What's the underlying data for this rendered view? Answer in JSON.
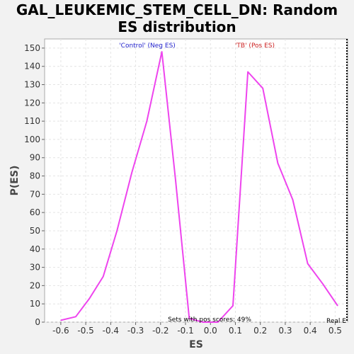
{
  "chart_data": {
    "type": "line",
    "title_line1": "GAL_LEUKEMIC_STEM_CELL_DN: Random",
    "title_line2": "ES distribution",
    "xlabel": "ES",
    "ylabel": "P(ES)",
    "xlim": [
      -0.665,
      0.55
    ],
    "ylim": [
      0,
      155
    ],
    "xticks": [
      -0.6,
      -0.5,
      -0.4,
      -0.3,
      -0.2,
      -0.1,
      0.0,
      0.1,
      0.2,
      0.3,
      0.4,
      0.5
    ],
    "xtick_labels": [
      "-0.6",
      "-0.5",
      "-0.4",
      "-0.3",
      "-0.2",
      "-0.1",
      "0.0",
      "0.1",
      "0.2",
      "0.3",
      "0.4",
      "0.5"
    ],
    "yticks": [
      0,
      10,
      20,
      30,
      40,
      50,
      60,
      70,
      80,
      90,
      100,
      110,
      120,
      130,
      140,
      150
    ],
    "ytick_labels": [
      "0",
      "10",
      "20",
      "30",
      "40",
      "50",
      "60",
      "70",
      "80",
      "90",
      "100",
      "110",
      "120",
      "130",
      "140",
      "150"
    ],
    "grid": true,
    "series": [
      {
        "color": "#ee44ee",
        "x": [
          -0.6,
          -0.54,
          -0.485,
          -0.43,
          -0.375,
          -0.315,
          -0.255,
          -0.195,
          -0.14,
          -0.085,
          -0.03,
          0.03,
          0.09,
          0.15,
          0.21,
          0.27,
          0.33,
          0.39,
          0.45,
          0.51
        ],
        "y": [
          1,
          3,
          13,
          25,
          50,
          82,
          110,
          148,
          78,
          2,
          0,
          0,
          9,
          137,
          128,
          87,
          67,
          32,
          21,
          9
        ]
      }
    ],
    "annotations": {
      "neg_label": "'Control' (Neg ES)",
      "neg_color": "#2222cc",
      "pos_label": "'TB' (Pos ES)",
      "pos_color": "#cc2222",
      "sets_text": "Sets with pos scores: 49%",
      "real_text": "Real E"
    }
  }
}
